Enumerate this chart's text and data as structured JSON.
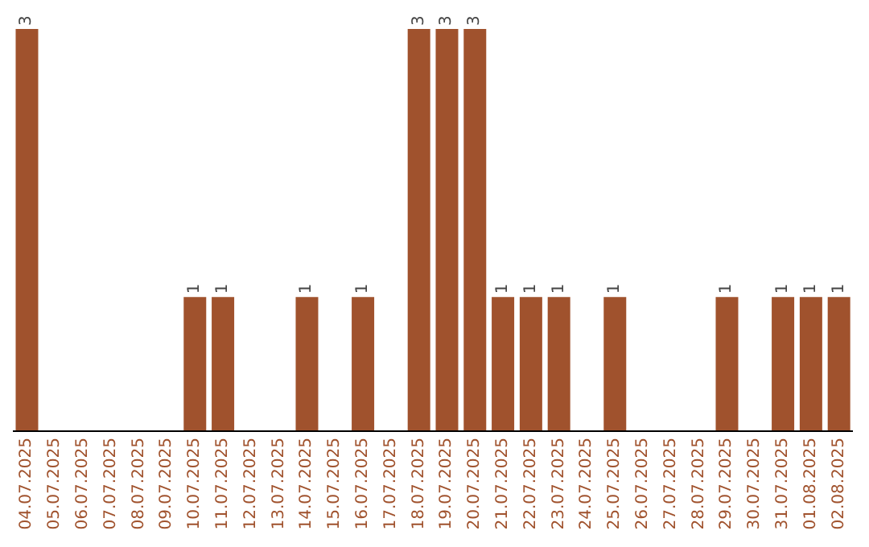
{
  "chart_data": {
    "type": "bar",
    "categories": [
      "04.07.2025",
      "05.07.2025",
      "06.07.2025",
      "07.07.2025",
      "08.07.2025",
      "09.07.2025",
      "10.07.2025",
      "11.07.2025",
      "12.07.2025",
      "13.07.2025",
      "14.07.2025",
      "15.07.2025",
      "16.07.2025",
      "17.07.2025",
      "18.07.2025",
      "19.07.2025",
      "20.07.2025",
      "21.07.2025",
      "22.07.2025",
      "23.07.2025",
      "24.07.2025",
      "25.07.2025",
      "26.07.2025",
      "27.07.2025",
      "28.07.2025",
      "29.07.2025",
      "30.07.2025",
      "31.07.2025",
      "01.08.2025",
      "02.08.2025"
    ],
    "values": [
      3,
      0,
      0,
      0,
      0,
      0,
      1,
      1,
      0,
      0,
      1,
      0,
      1,
      0,
      3,
      3,
      3,
      1,
      1,
      1,
      0,
      1,
      0,
      0,
      0,
      1,
      0,
      1,
      1,
      1
    ],
    "value_labels": [
      "3",
      null,
      null,
      null,
      null,
      null,
      "1",
      "1",
      null,
      null,
      "1",
      null,
      "1",
      null,
      "3",
      "3",
      "3",
      "1",
      "1",
      "1",
      null,
      "1",
      null,
      null,
      null,
      "1",
      null,
      "1",
      "1",
      "1"
    ],
    "color": "#a0522d",
    "grid": false,
    "legend": false
  }
}
